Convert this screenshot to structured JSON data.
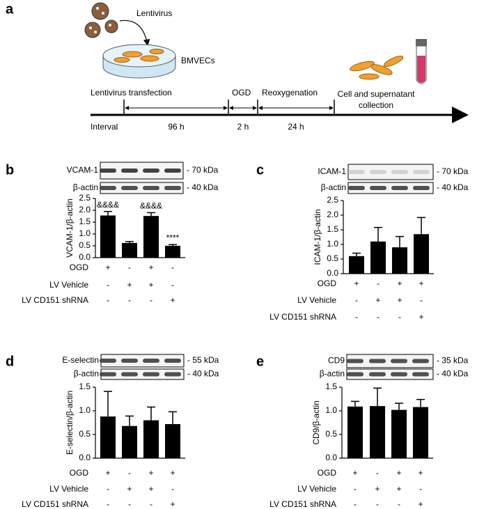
{
  "diagram": {
    "panel": "a",
    "virus_label": "Lentivirus",
    "cell_label": "BMVECs",
    "stages": [
      "Lentivirus transfection",
      "OGD",
      "Reoxygenation"
    ],
    "collection_label": [
      "Cell and supernatant",
      "collection"
    ],
    "interval_label": "Interval",
    "intervals": [
      "96 h",
      "2 h",
      "24 h"
    ]
  },
  "chart_data": [
    {
      "type": "bar",
      "panel": "b",
      "ylabel": "VCAM-1/β-actin",
      "blot_labels": [
        "VCAM-1",
        "β-actin"
      ],
      "kda_labels": [
        "- 70 kDa",
        "- 40 kDa"
      ],
      "values": [
        1.78,
        0.62,
        1.76,
        0.5
      ],
      "errors": [
        0.17,
        0.06,
        0.14,
        0.05
      ],
      "annotations": [
        "&&&&",
        null,
        "&&&&",
        "****"
      ],
      "color": "#000000",
      "ylim": [
        0,
        2.5
      ],
      "yticks": [
        {
          "value": 0,
          "label": "0.0"
        },
        0.5,
        {
          "value": 1,
          "label": "1.0"
        },
        1.5,
        {
          "value": 2,
          "label": "2.0"
        },
        2.5
      ],
      "conditions": [
        {
          "label": "OGD",
          "signs": [
            "+",
            "-",
            "+",
            "-"
          ]
        },
        {
          "label": "LV Vehicle",
          "signs": [
            "-",
            "+",
            "+",
            "-"
          ]
        },
        {
          "label": "LV CD151 shRNA",
          "signs": [
            "-",
            "-",
            "-",
            "+"
          ]
        }
      ]
    },
    {
      "type": "bar",
      "panel": "c",
      "ylabel": "ICAM-1/β-actin",
      "blot_labels": [
        "ICAM-1",
        "β-actin"
      ],
      "kda_labels": [
        "- 70 kDa",
        "- 40 kDa"
      ],
      "values": [
        0.6,
        1.1,
        0.9,
        1.35
      ],
      "errors": [
        0.1,
        0.48,
        0.37,
        0.57
      ],
      "annotations": [
        null,
        null,
        null,
        null
      ],
      "color": "#000000",
      "ylim": [
        0,
        2.5
      ],
      "yticks": [
        {
          "value": 0,
          "label": "0.0"
        },
        0.5,
        {
          "value": 1,
          "label": "1.0"
        },
        1.5,
        {
          "value": 2,
          "label": "2.0"
        },
        2.5
      ],
      "conditions": [
        {
          "label": "OGD",
          "signs": [
            "+",
            "-",
            "+",
            "+"
          ]
        },
        {
          "label": "LV Vehicle",
          "signs": [
            "-",
            "+",
            "+",
            "-"
          ]
        },
        {
          "label": "LV CD151 shRNA",
          "signs": [
            "-",
            "-",
            "-",
            "+"
          ]
        }
      ]
    },
    {
      "type": "bar",
      "panel": "d",
      "ylabel": "E-selectin/β-actin",
      "blot_labels": [
        "E-selectin",
        "β-actin"
      ],
      "kda_labels": [
        "- 55 kDa",
        "- 40 kDa"
      ],
      "values": [
        0.88,
        0.68,
        0.8,
        0.72
      ],
      "errors": [
        0.53,
        0.21,
        0.28,
        0.26
      ],
      "annotations": [
        null,
        null,
        null,
        null
      ],
      "color": "#000000",
      "ylim": [
        0,
        1.5
      ],
      "yticks": [
        {
          "value": 0,
          "label": "0.0"
        },
        0.5,
        {
          "value": 1,
          "label": "1.0"
        },
        1.5
      ],
      "conditions": [
        {
          "label": "OGD",
          "signs": [
            "+",
            "-",
            "+",
            "+"
          ]
        },
        {
          "label": "LV Vehicle",
          "signs": [
            "-",
            "+",
            "+",
            "-"
          ]
        },
        {
          "label": "LV CD151 shRNA",
          "signs": [
            "-",
            "-",
            "-",
            "+"
          ]
        }
      ]
    },
    {
      "type": "bar",
      "panel": "e",
      "ylabel": "CD9/β-actin",
      "blot_labels": [
        "CD9",
        "β-actin"
      ],
      "kda_labels": [
        "- 35 kDa",
        "- 40 kDa"
      ],
      "values": [
        1.09,
        1.1,
        1.02,
        1.08
      ],
      "errors": [
        0.11,
        0.38,
        0.14,
        0.16
      ],
      "annotations": [
        null,
        null,
        null,
        null
      ],
      "color": "#000000",
      "ylim": [
        0,
        1.5
      ],
      "yticks": [
        {
          "value": 0,
          "label": "0.0"
        },
        0.5,
        {
          "value": 1,
          "label": "1.0"
        },
        1.5
      ],
      "conditions": [
        {
          "label": "OGD",
          "signs": [
            "+",
            "-",
            "+",
            "+"
          ]
        },
        {
          "label": "LV Vehicle",
          "signs": [
            "-",
            "+",
            "+",
            "-"
          ]
        },
        {
          "label": "LV CD151 shRNA",
          "signs": [
            "-",
            "-",
            "-",
            "+"
          ]
        }
      ]
    }
  ]
}
